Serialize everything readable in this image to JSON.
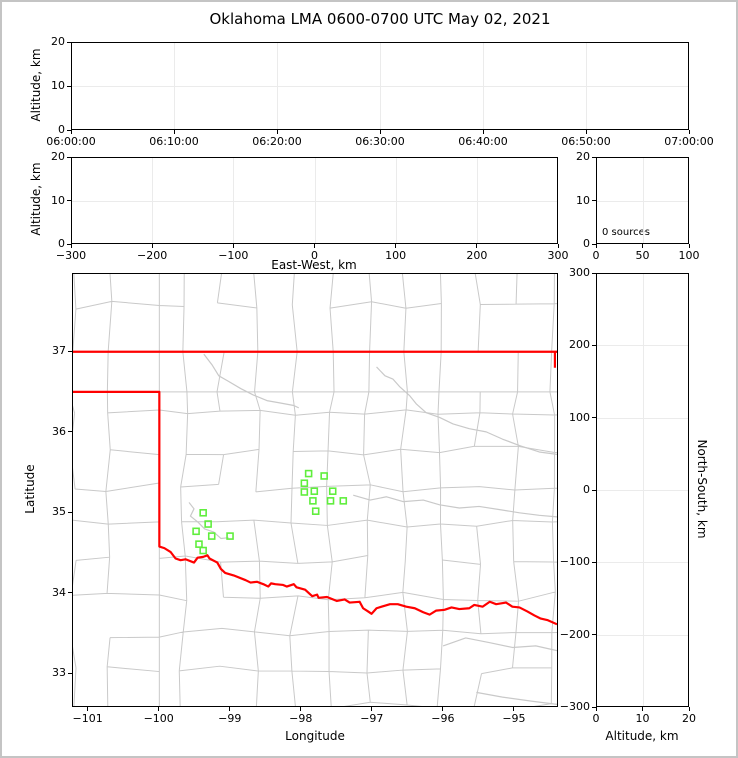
{
  "title": "Oklahoma LMA 0600-0700 UTC May 02, 2021",
  "colors": {
    "state_border": "#ff0000",
    "county_line": "#c9c9c9",
    "water_line": "#c9c9c9",
    "station": "#5fee3c",
    "gridline": "#ebebeb",
    "spine": "#000000"
  },
  "panels": {
    "time_height": {
      "ylabel": "Altitude, km",
      "yticks": [
        "20",
        "10",
        "0"
      ],
      "xticks": [
        "06:00:00",
        "06:10:00",
        "06:20:00",
        "06:30:00",
        "06:40:00",
        "06:50:00",
        "07:00:00"
      ]
    },
    "ew_height": {
      "ylabel": "Altitude, km",
      "xlabel": "East-West, km",
      "yticks": [
        "20",
        "10",
        "0"
      ],
      "xticks": [
        "−300",
        "−200",
        "−100",
        "0",
        "100",
        "200",
        "300"
      ]
    },
    "alt_hist": {
      "annotation": "0 sources",
      "yticks": [
        "20",
        "10",
        "0"
      ],
      "xticks": [
        "0",
        "50",
        "100"
      ]
    },
    "map": {
      "xlabel": "Longitude",
      "ylabel": "Latitude",
      "xticks": [
        "−101",
        "−100",
        "−99",
        "−98",
        "−97",
        "−96",
        "−95"
      ],
      "xtick_values": [
        -101,
        -100,
        -99,
        -98,
        -97,
        -96,
        -95
      ],
      "yticks": [
        "37",
        "36",
        "35",
        "34",
        "33"
      ],
      "ytick_values": [
        37,
        36,
        35,
        34,
        33
      ],
      "lon_range": [
        -101.22,
        -94.38
      ],
      "lat_range": [
        32.58,
        37.97
      ]
    },
    "ns_height": {
      "xlabel": "Altitude, km",
      "ylabel_right": "North-South, km",
      "yticks": [
        "300",
        "200",
        "100",
        "0",
        "−100",
        "−200",
        "−300"
      ],
      "xticks": [
        "0",
        "10",
        "20"
      ]
    }
  },
  "map_layers": {
    "county_grid": {
      "seed": 42,
      "cell_lon": 0.52,
      "cell_lat": 0.455,
      "jitter": 0.12,
      "merge_prob": 0.15
    },
    "state_border": {
      "north": [
        [
          -101.22,
          37.0
        ],
        [
          -94.38,
          37.0
        ]
      ],
      "northeast_vertical": [
        [
          -94.41,
          37.0
        ],
        [
          -94.41,
          36.8
        ]
      ],
      "west_and_south": [
        [
          -101.22,
          36.5
        ],
        [
          -100.0,
          36.5
        ],
        [
          -100.0,
          34.57
        ],
        [
          -99.93,
          34.55
        ],
        [
          -99.84,
          34.5
        ],
        [
          -99.77,
          34.42
        ],
        [
          -99.7,
          34.4
        ],
        [
          -99.63,
          34.41
        ],
        [
          -99.51,
          34.37
        ],
        [
          -99.46,
          34.43
        ],
        [
          -99.38,
          34.44
        ],
        [
          -99.32,
          34.46
        ],
        [
          -99.29,
          34.42
        ],
        [
          -99.18,
          34.37
        ],
        [
          -99.13,
          34.29
        ],
        [
          -99.07,
          34.24
        ],
        [
          -98.95,
          34.21
        ],
        [
          -98.78,
          34.15
        ],
        [
          -98.71,
          34.12
        ],
        [
          -98.62,
          34.13
        ],
        [
          -98.53,
          34.1
        ],
        [
          -98.46,
          34.07
        ],
        [
          -98.42,
          34.11
        ],
        [
          -98.36,
          34.1
        ],
        [
          -98.25,
          34.09
        ],
        [
          -98.2,
          34.07
        ],
        [
          -98.1,
          34.1
        ],
        [
          -98.06,
          34.06
        ],
        [
          -97.94,
          34.03
        ],
        [
          -97.84,
          33.95
        ],
        [
          -97.77,
          33.97
        ],
        [
          -97.75,
          33.93
        ],
        [
          -97.63,
          33.94
        ],
        [
          -97.49,
          33.89
        ],
        [
          -97.38,
          33.91
        ],
        [
          -97.31,
          33.87
        ],
        [
          -97.17,
          33.88
        ],
        [
          -97.12,
          33.8
        ],
        [
          -97.05,
          33.76
        ],
        [
          -97.0,
          33.73
        ],
        [
          -96.93,
          33.8
        ],
        [
          -96.86,
          33.82
        ],
        [
          -96.74,
          33.85
        ],
        [
          -96.63,
          33.85
        ],
        [
          -96.51,
          33.82
        ],
        [
          -96.39,
          33.8
        ],
        [
          -96.27,
          33.75
        ],
        [
          -96.18,
          33.72
        ],
        [
          -96.09,
          33.77
        ],
        [
          -95.97,
          33.78
        ],
        [
          -95.87,
          33.81
        ],
        [
          -95.76,
          33.79
        ],
        [
          -95.62,
          33.8
        ],
        [
          -95.55,
          33.84
        ],
        [
          -95.43,
          33.82
        ],
        [
          -95.33,
          33.88
        ],
        [
          -95.24,
          33.85
        ],
        [
          -95.1,
          33.87
        ],
        [
          -95.01,
          33.82
        ],
        [
          -94.91,
          33.81
        ],
        [
          -94.8,
          33.76
        ],
        [
          -94.7,
          33.71
        ],
        [
          -94.61,
          33.67
        ],
        [
          -94.51,
          33.65
        ],
        [
          -94.38,
          33.6
        ]
      ]
    },
    "water_lines": [
      [
        [
          -99.37,
          36.97
        ],
        [
          -99.25,
          36.83
        ],
        [
          -99.16,
          36.7
        ],
        [
          -99.04,
          36.64
        ],
        [
          -98.85,
          36.54
        ],
        [
          -98.67,
          36.46
        ],
        [
          -98.48,
          36.39
        ],
        [
          -98.29,
          36.36
        ],
        [
          -98.1,
          36.33
        ],
        [
          -98.03,
          36.3
        ]
      ],
      [
        [
          -96.93,
          36.81
        ],
        [
          -96.81,
          36.7
        ],
        [
          -96.7,
          36.66
        ],
        [
          -96.6,
          36.56
        ],
        [
          -96.46,
          36.45
        ],
        [
          -96.37,
          36.35
        ],
        [
          -96.23,
          36.24
        ],
        [
          -96.04,
          36.18
        ],
        [
          -95.85,
          36.1
        ],
        [
          -95.62,
          36.04
        ],
        [
          -95.38,
          36.0
        ],
        [
          -95.15,
          35.91
        ],
        [
          -94.91,
          35.83
        ],
        [
          -94.63,
          35.75
        ],
        [
          -94.38,
          35.72
        ]
      ],
      [
        [
          -97.26,
          35.21
        ],
        [
          -97.02,
          35.15
        ],
        [
          -96.79,
          35.19
        ],
        [
          -96.55,
          35.13
        ],
        [
          -96.27,
          35.15
        ],
        [
          -96.04,
          35.09
        ],
        [
          -95.76,
          35.05
        ],
        [
          -95.48,
          35.07
        ],
        [
          -95.19,
          35.03
        ],
        [
          -94.91,
          34.99
        ],
        [
          -94.63,
          34.96
        ],
        [
          -94.38,
          34.94
        ]
      ],
      [
        [
          -99.58,
          35.12
        ],
        [
          -99.51,
          35.04
        ],
        [
          -99.56,
          34.95
        ],
        [
          -99.45,
          34.87
        ],
        [
          -99.36,
          34.79
        ],
        [
          -99.23,
          34.75
        ],
        [
          -99.13,
          34.67
        ],
        [
          -99.02,
          34.68
        ]
      ],
      [
        [
          -95.99,
          33.33
        ],
        [
          -95.67,
          33.43
        ],
        [
          -95.33,
          33.37
        ],
        [
          -95.01,
          33.31
        ],
        [
          -94.68,
          33.33
        ],
        [
          -94.38,
          33.27
        ]
      ],
      [
        [
          -95.52,
          32.75
        ],
        [
          -95.15,
          32.69
        ],
        [
          -94.73,
          32.64
        ],
        [
          -94.38,
          32.6
        ]
      ]
    ]
  },
  "chart_data": [
    {
      "type": "scatter",
      "title": "Oklahoma LMA 0600-0700 UTC May 02, 2021",
      "xlabel": "",
      "ylabel": "Altitude, km",
      "x_tick_labels": [
        "06:00:00",
        "06:10:00",
        "06:20:00",
        "06:30:00",
        "06:40:00",
        "06:50:00",
        "07:00:00"
      ],
      "ylim": [
        0,
        20
      ],
      "grid": true,
      "points": []
    },
    {
      "type": "scatter",
      "xlabel": "East-West, km",
      "ylabel": "Altitude, km",
      "xlim": [
        -300,
        300
      ],
      "ylim": [
        0,
        20
      ],
      "grid": true,
      "points": []
    },
    {
      "type": "histogram",
      "xlabel": "",
      "ylabel": "",
      "xlim": [
        0,
        100
      ],
      "ylim": [
        0,
        20
      ],
      "annotation": "0 sources",
      "grid": true,
      "points": []
    },
    {
      "type": "map",
      "xlabel": "Longitude",
      "ylabel": "Latitude",
      "xlim": [
        -101.22,
        -94.38
      ],
      "ylim": [
        32.58,
        37.97
      ],
      "grid": false,
      "stations": [
        [
          -97.89,
          35.48
        ],
        [
          -97.67,
          35.45
        ],
        [
          -97.95,
          35.36
        ],
        [
          -97.81,
          35.26
        ],
        [
          -97.95,
          35.25
        ],
        [
          -97.55,
          35.26
        ],
        [
          -97.58,
          35.14
        ],
        [
          -97.4,
          35.14
        ],
        [
          -97.83,
          35.14
        ],
        [
          -97.79,
          35.01
        ],
        [
          -99.38,
          34.99
        ],
        [
          -99.31,
          34.85
        ],
        [
          -99.48,
          34.76
        ],
        [
          -99.26,
          34.7
        ],
        [
          -99.0,
          34.7
        ],
        [
          -99.44,
          34.6
        ],
        [
          -99.38,
          34.52
        ]
      ]
    },
    {
      "type": "scatter",
      "xlabel": "Altitude, km",
      "ylabel": "North-South, km",
      "xlim": [
        0,
        20
      ],
      "ylim": [
        -300,
        300
      ],
      "grid": true,
      "points": []
    }
  ]
}
